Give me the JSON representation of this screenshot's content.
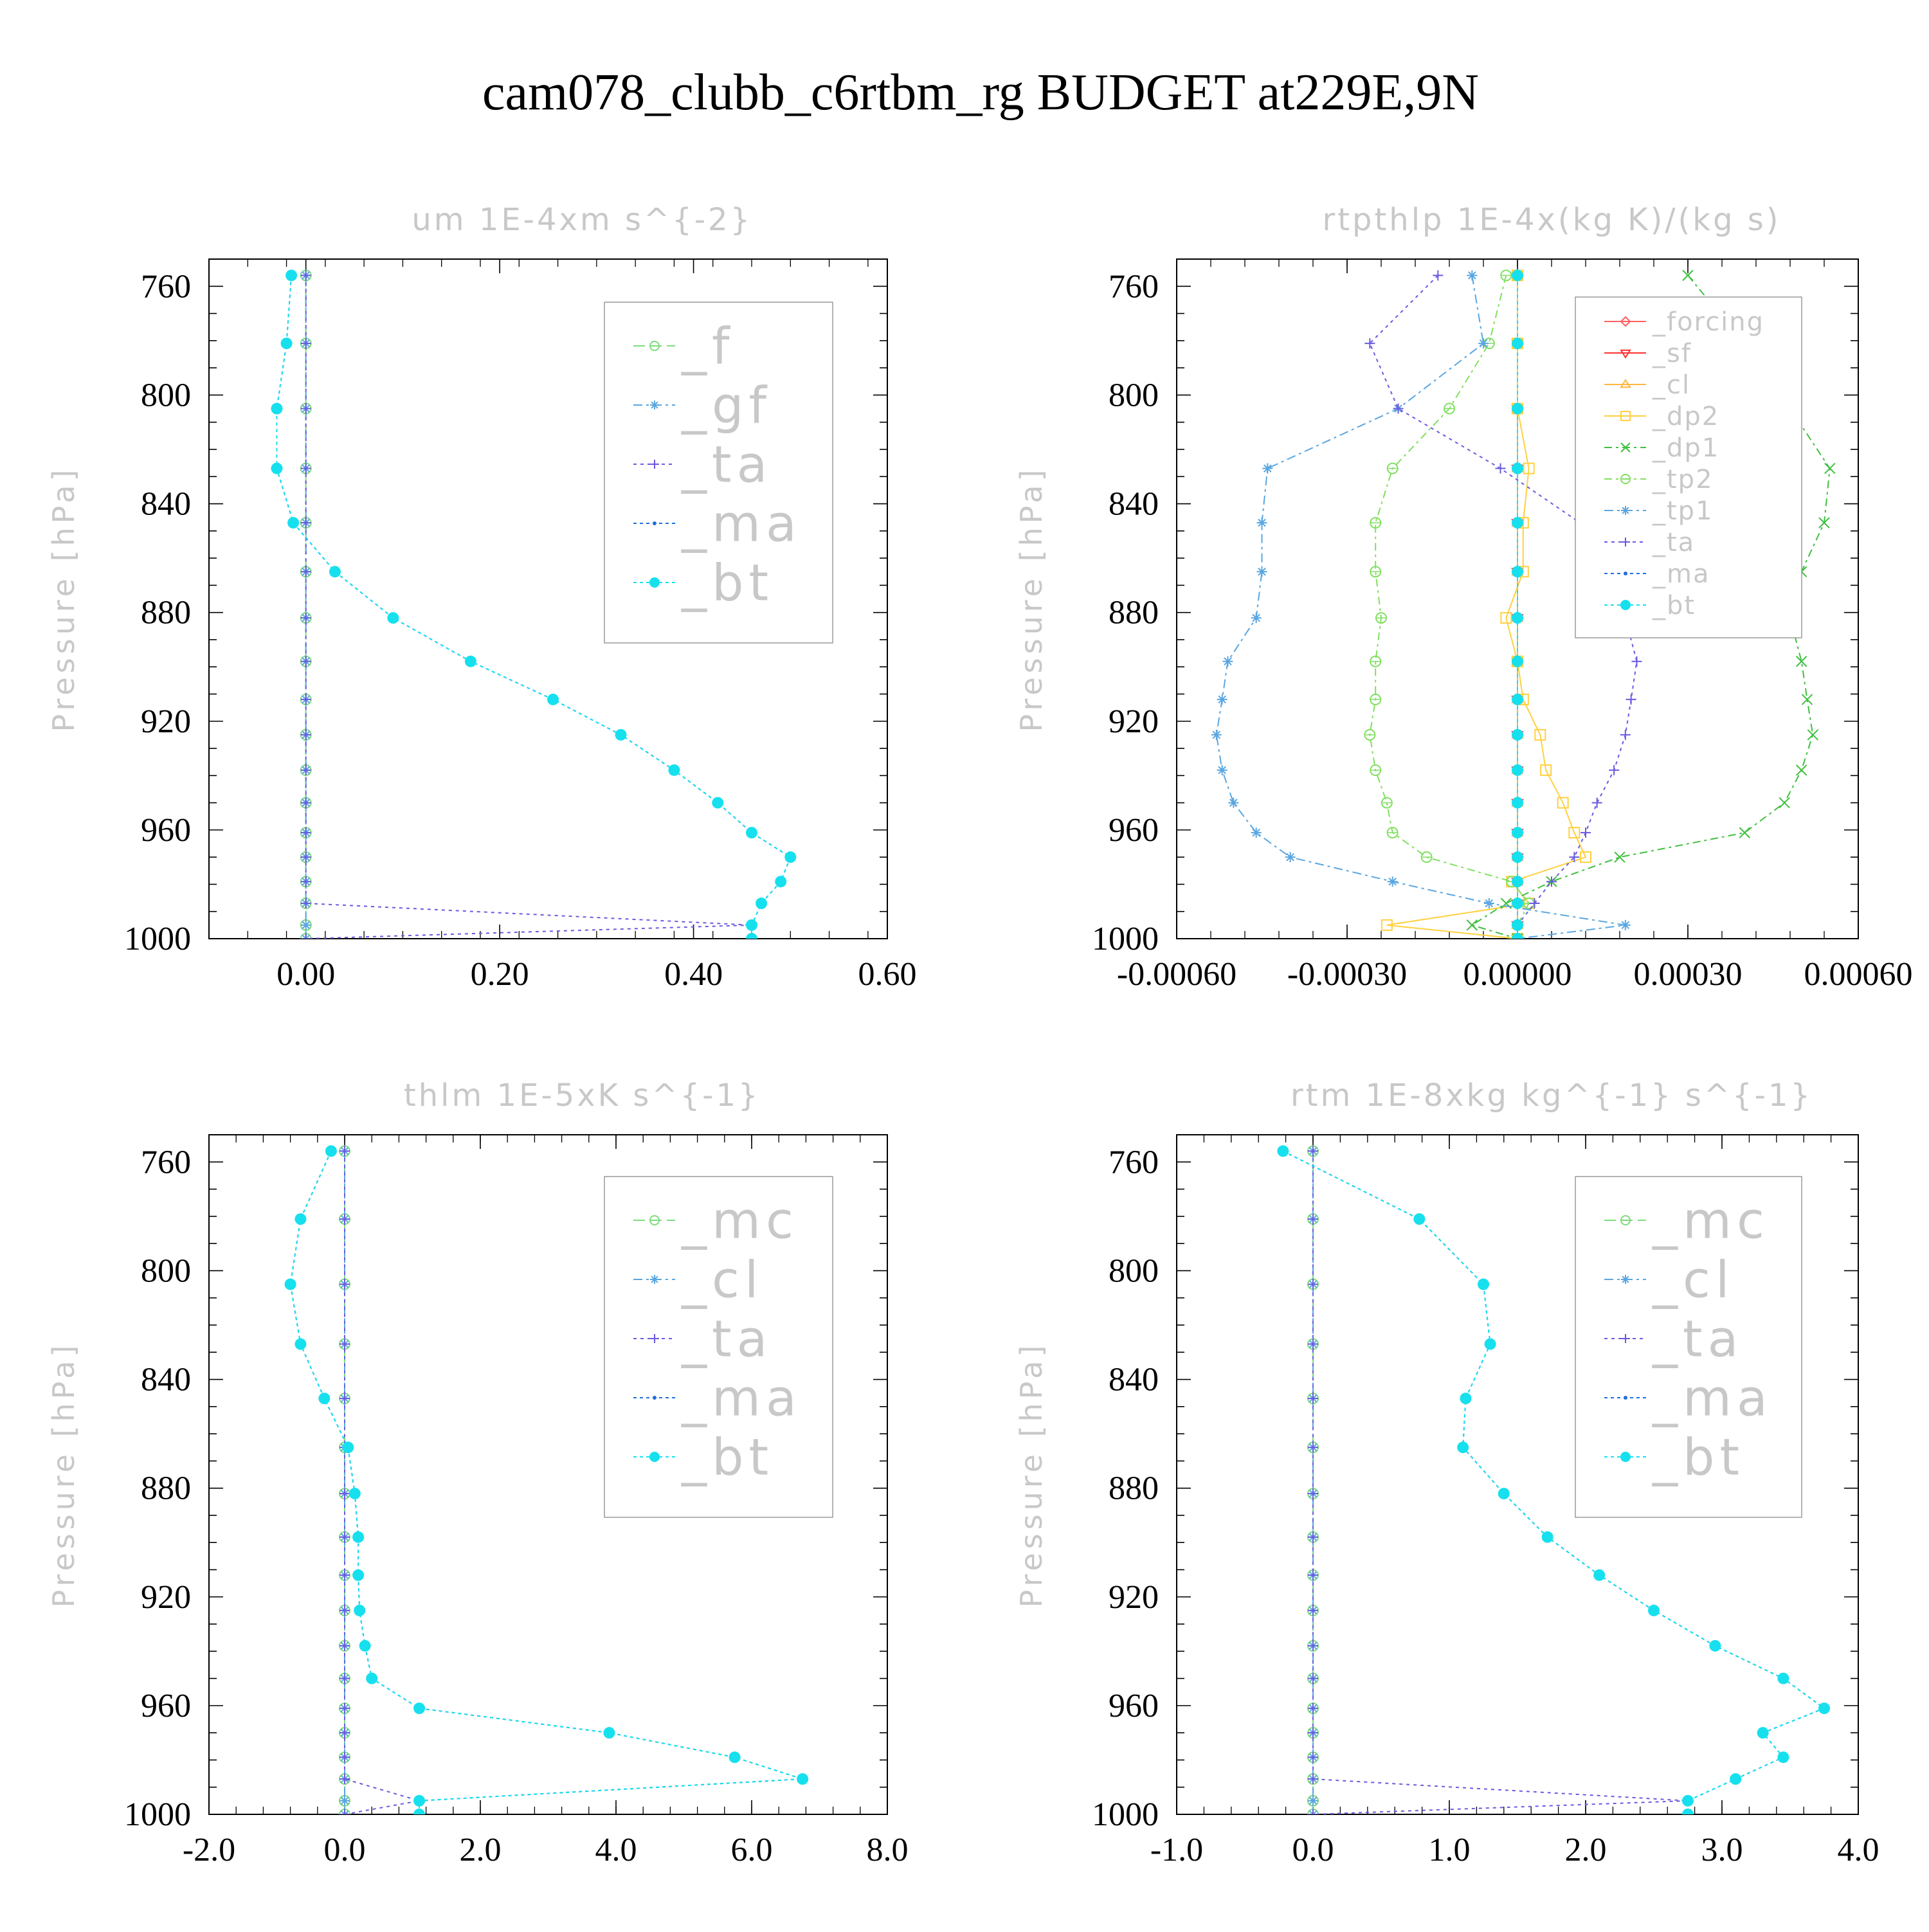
{
  "main_title": "cam078_clubb_c6rtbm_rg  BUDGET at229E,9N",
  "colors": {
    "f": "#7ddc7d",
    "gf": "#5aa6e0",
    "ta": "#6a5ae0",
    "ma": "#1f6fe0",
    "bt": "#16e0ee",
    "mc": "#7ddc7d",
    "cl_blue": "#5aa6e0",
    "forcing": "#ff6060",
    "sf": "#ff3030",
    "cl_orange": "#ffb640",
    "dp2": "#ffd040",
    "dp1": "#40c040",
    "tp2": "#80e060",
    "tp1": "#5aa6e0",
    "axis_text": "#000000",
    "faint_text": "#c8c8c8",
    "legend_border": "#9a9a9a"
  },
  "chart_data": [
    {
      "type": "line",
      "title": "um  1E-4xm s^{-2}",
      "ylabel": "Pressure [hPa]",
      "ylim": [
        750,
        1000
      ],
      "xlim": [
        -0.1,
        0.6
      ],
      "xticks": [
        "0.00",
        "0.20",
        "0.40",
        "0.60"
      ],
      "xtick_values": [
        0.0,
        0.2,
        0.4,
        0.6
      ],
      "yticks": [
        "760",
        "800",
        "840",
        "880",
        "920",
        "960",
        "1000"
      ],
      "ytick_values": [
        760,
        800,
        840,
        880,
        920,
        960,
        1000
      ],
      "levels": [
        756,
        781,
        805,
        827,
        847,
        865,
        882,
        898,
        912,
        925,
        938,
        950,
        961,
        970,
        979,
        987,
        995,
        1000
      ],
      "legend": [
        "_f",
        "_gf",
        "_ta",
        "_ma",
        "_bt"
      ],
      "series": [
        {
          "name": "_f",
          "style": "f",
          "values": [
            0,
            0,
            0,
            0,
            0,
            0,
            0,
            0,
            0,
            0,
            0,
            0,
            0,
            0,
            0,
            0,
            0,
            0
          ]
        },
        {
          "name": "_gf",
          "style": "gf",
          "values": [
            0,
            0,
            0,
            0,
            0,
            0,
            0,
            0,
            0,
            0,
            0,
            0,
            0,
            0,
            0,
            0,
            0,
            0
          ]
        },
        {
          "name": "_ta",
          "style": "ta",
          "values": [
            0,
            0,
            0,
            0,
            0,
            0,
            0,
            0,
            0,
            0,
            0,
            0,
            0,
            0,
            0,
            0,
            0.46,
            0
          ]
        },
        {
          "name": "_ma",
          "style": "ma",
          "values": [
            -0.015,
            -0.02,
            -0.03,
            -0.03,
            -0.013,
            0.03,
            0.09,
            0.17,
            0.255,
            0.325,
            0.38,
            0.425,
            0.46,
            0.5,
            0.49,
            0.47,
            0.46,
            0.46
          ]
        },
        {
          "name": "_bt",
          "style": "bt",
          "values": [
            -0.015,
            -0.02,
            -0.03,
            -0.03,
            -0.013,
            0.03,
            0.09,
            0.17,
            0.255,
            0.325,
            0.38,
            0.425,
            0.46,
            0.5,
            0.49,
            0.47,
            0.46,
            0.46
          ]
        }
      ]
    },
    {
      "type": "line",
      "title": "rtpthlp  1E-4x(kg K)/(kg s)",
      "ylabel": "Pressure [hPa]",
      "ylim": [
        750,
        1000
      ],
      "xlim": [
        -0.0006,
        0.0006
      ],
      "xticks": [
        "-0.00060",
        "-0.00030",
        "0.00000",
        "0.00030",
        "0.00060"
      ],
      "xtick_values": [
        -0.0006,
        -0.0003,
        0.0,
        0.0003,
        0.0006
      ],
      "yticks": [
        "760",
        "800",
        "840",
        "880",
        "920",
        "960",
        "1000"
      ],
      "ytick_values": [
        760,
        800,
        840,
        880,
        920,
        960,
        1000
      ],
      "levels": [
        756,
        781,
        805,
        827,
        847,
        865,
        882,
        898,
        912,
        925,
        938,
        950,
        961,
        970,
        979,
        987,
        995,
        1000
      ],
      "legend": [
        "_forcing",
        "_sf",
        "_cl",
        "_dp2",
        "_dp1",
        "_tp2",
        "_tp1",
        "_ta",
        "_ma",
        "_bt"
      ],
      "series": [
        {
          "name": "_forcing",
          "style": "forcing",
          "values": [
            0,
            0,
            0,
            0,
            0,
            0,
            0,
            0,
            0,
            0,
            0,
            0,
            0,
            0,
            0,
            0,
            0,
            0
          ]
        },
        {
          "name": "_sf",
          "style": "sf",
          "values": [
            0,
            0,
            0,
            0,
            0,
            0,
            0,
            0,
            0,
            0,
            0,
            0,
            0,
            0,
            0,
            0,
            0,
            0
          ]
        },
        {
          "name": "_cl",
          "style": "cl_orange",
          "values": [
            0,
            0,
            0,
            0,
            0,
            0,
            0,
            0,
            0,
            0,
            0,
            0,
            0,
            0,
            0,
            0,
            0,
            0
          ]
        },
        {
          "name": "_dp2",
          "style": "dp2",
          "values": [
            0,
            0,
            0,
            2e-05,
            1e-05,
            1e-05,
            -2e-05,
            0,
            1e-05,
            4e-05,
            5e-05,
            8e-05,
            0.0001,
            0.00012,
            -1e-05,
            2e-05,
            -0.00023,
            0
          ]
        },
        {
          "name": "_dp1",
          "style": "dp1",
          "values": [
            0.0003,
            0.0004,
            0.00048,
            0.00055,
            0.00054,
            0.0005,
            0.00048,
            0.0005,
            0.00051,
            0.00052,
            0.0005,
            0.00047,
            0.0004,
            0.00018,
            6e-05,
            -2e-05,
            -8e-05,
            0
          ]
        },
        {
          "name": "_tp2",
          "style": "tp2",
          "values": [
            -2e-05,
            -5e-05,
            -0.00012,
            -0.00022,
            -0.00025,
            -0.00025,
            -0.00024,
            -0.00025,
            -0.00025,
            -0.00026,
            -0.00025,
            -0.00023,
            -0.00022,
            -0.00016,
            -1e-05,
            2e-05,
            0,
            0
          ]
        },
        {
          "name": "_tp1",
          "style": "tp1",
          "values": [
            -8e-05,
            -6e-05,
            -0.00021,
            -0.00044,
            -0.00045,
            -0.00045,
            -0.00046,
            -0.00051,
            -0.00052,
            -0.00053,
            -0.00052,
            -0.0005,
            -0.00046,
            -0.0004,
            -0.00022,
            -5e-05,
            0.00019,
            0
          ]
        },
        {
          "name": "_ta",
          "style": "ta",
          "values": [
            -0.00014,
            -0.00026,
            -0.00021,
            -3e-05,
            0.00011,
            0.00017,
            0.00019,
            0.00021,
            0.0002,
            0.00019,
            0.00017,
            0.00014,
            0.00012,
            0.0001,
            6e-05,
            3e-05,
            0,
            0
          ]
        },
        {
          "name": "_ma",
          "style": "ma",
          "values": [
            0,
            0,
            0,
            0,
            0,
            0,
            0,
            0,
            0,
            0,
            0,
            0,
            0,
            0,
            0,
            0,
            0,
            0
          ]
        },
        {
          "name": "_bt",
          "style": "bt",
          "values": [
            0,
            0,
            0,
            0,
            0,
            0,
            0,
            0,
            0,
            0,
            0,
            0,
            0,
            0,
            0,
            0,
            0,
            0
          ]
        }
      ]
    },
    {
      "type": "line",
      "title": "thlm  1E-5xK s^{-1}",
      "ylabel": "Pressure [hPa]",
      "ylim": [
        750,
        1000
      ],
      "xlim": [
        -2.0,
        8.0
      ],
      "xticks": [
        "-2.0",
        "0.0",
        "2.0",
        "4.0",
        "6.0",
        "8.0"
      ],
      "xtick_values": [
        -2.0,
        0.0,
        2.0,
        4.0,
        6.0,
        8.0
      ],
      "yticks": [
        "760",
        "800",
        "840",
        "880",
        "920",
        "960",
        "1000"
      ],
      "ytick_values": [
        760,
        800,
        840,
        880,
        920,
        960,
        1000
      ],
      "levels": [
        756,
        781,
        805,
        827,
        847,
        865,
        882,
        898,
        912,
        925,
        938,
        950,
        961,
        970,
        979,
        987,
        995,
        1000
      ],
      "legend": [
        "_mc",
        "_cl",
        "_ta",
        "_ma",
        "_bt"
      ],
      "series": [
        {
          "name": "_mc",
          "style": "mc",
          "values": [
            0,
            0,
            0,
            0,
            0,
            0,
            0,
            0,
            0,
            0,
            0,
            0,
            0,
            0,
            0,
            0,
            0,
            0
          ]
        },
        {
          "name": "_cl",
          "style": "cl_blue",
          "values": [
            0,
            0,
            0,
            0,
            0,
            0,
            0,
            0,
            0,
            0,
            0,
            0,
            0,
            0,
            0,
            0,
            0,
            0
          ]
        },
        {
          "name": "_ta",
          "style": "ta",
          "values": [
            0,
            0,
            0,
            0,
            0,
            0,
            0,
            0,
            0,
            0,
            0,
            0,
            0,
            0,
            0,
            0,
            1.1,
            0
          ]
        },
        {
          "name": "_ma",
          "style": "ma",
          "values": [
            -0.2,
            -0.65,
            -0.8,
            -0.65,
            -0.3,
            0.05,
            0.15,
            0.2,
            0.2,
            0.22,
            0.3,
            0.4,
            1.1,
            3.9,
            5.75,
            6.75,
            1.1,
            1.1
          ]
        },
        {
          "name": "_bt",
          "style": "bt",
          "values": [
            -0.2,
            -0.65,
            -0.8,
            -0.65,
            -0.3,
            0.05,
            0.15,
            0.2,
            0.2,
            0.22,
            0.3,
            0.4,
            1.1,
            3.9,
            5.75,
            6.75,
            1.1,
            1.1
          ]
        }
      ]
    },
    {
      "type": "line",
      "title": "rtm  1E-8xkg kg^{-1} s^{-1}",
      "ylabel": "Pressure [hPa]",
      "ylim": [
        750,
        1000
      ],
      "xlim": [
        -1.0,
        4.0
      ],
      "xticks": [
        "-1.0",
        "0.0",
        "1.0",
        "2.0",
        "3.0",
        "4.0"
      ],
      "xtick_values": [
        -1.0,
        0.0,
        1.0,
        2.0,
        3.0,
        4.0
      ],
      "yticks": [
        "760",
        "800",
        "840",
        "880",
        "920",
        "960",
        "1000"
      ],
      "ytick_values": [
        760,
        800,
        840,
        880,
        920,
        960,
        1000
      ],
      "levels": [
        756,
        781,
        805,
        827,
        847,
        865,
        882,
        898,
        912,
        925,
        938,
        950,
        961,
        970,
        979,
        987,
        995,
        1000
      ],
      "legend": [
        "_mc",
        "_cl",
        "_ta",
        "_ma",
        "_bt"
      ],
      "series": [
        {
          "name": "_mc",
          "style": "mc",
          "values": [
            0,
            0,
            0,
            0,
            0,
            0,
            0,
            0,
            0,
            0,
            0,
            0,
            0,
            0,
            0,
            0,
            0,
            0
          ]
        },
        {
          "name": "_cl",
          "style": "cl_blue",
          "values": [
            0,
            0,
            0,
            0,
            0,
            0,
            0,
            0,
            0,
            0,
            0,
            0,
            0,
            0,
            0,
            0,
            0,
            0
          ]
        },
        {
          "name": "_ta",
          "style": "ta",
          "values": [
            0,
            0,
            0,
            0,
            0,
            0,
            0,
            0,
            0,
            0,
            0,
            0,
            0,
            0,
            0,
            0,
            2.75,
            0
          ]
        },
        {
          "name": "_ma",
          "style": "ma",
          "values": [
            -0.22,
            0.78,
            1.25,
            1.3,
            1.12,
            1.1,
            1.4,
            1.72,
            2.1,
            2.5,
            2.95,
            3.45,
            3.75,
            3.3,
            3.45,
            3.1,
            2.75,
            2.75
          ]
        },
        {
          "name": "_bt",
          "style": "bt",
          "values": [
            -0.22,
            0.78,
            1.25,
            1.3,
            1.12,
            1.1,
            1.4,
            1.72,
            2.1,
            2.5,
            2.95,
            3.45,
            3.75,
            3.3,
            3.45,
            3.1,
            2.75,
            2.75
          ]
        }
      ]
    }
  ]
}
